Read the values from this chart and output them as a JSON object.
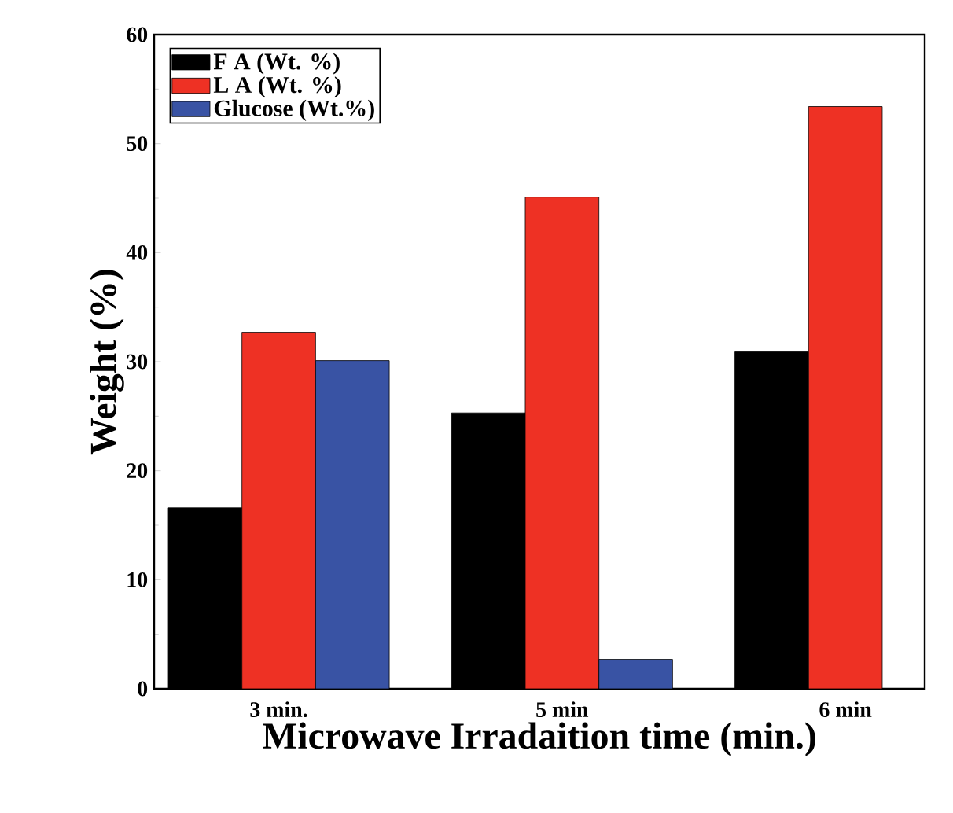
{
  "chart_data": {
    "type": "bar",
    "xlabel": "Microwave Irradaition time (min.)",
    "ylabel": "Weight (%)",
    "categories": [
      "3 min.",
      "5 min",
      "6 min"
    ],
    "series": [
      {
        "name": "F A (Wt. %)",
        "color": "#000000",
        "values": [
          16.6,
          25.3,
          30.9
        ]
      },
      {
        "name": "L A (Wt. %)",
        "color": "#ee3124",
        "values": [
          32.7,
          45.1,
          53.4
        ]
      },
      {
        "name": "Glucose (Wt.%)",
        "color": "#3953a4",
        "values": [
          30.1,
          2.7,
          null
        ]
      }
    ],
    "ylim": [
      0,
      60
    ],
    "yticks": [
      0,
      10,
      20,
      30,
      40,
      50,
      60
    ],
    "legend": "top left",
    "grid": false
  }
}
